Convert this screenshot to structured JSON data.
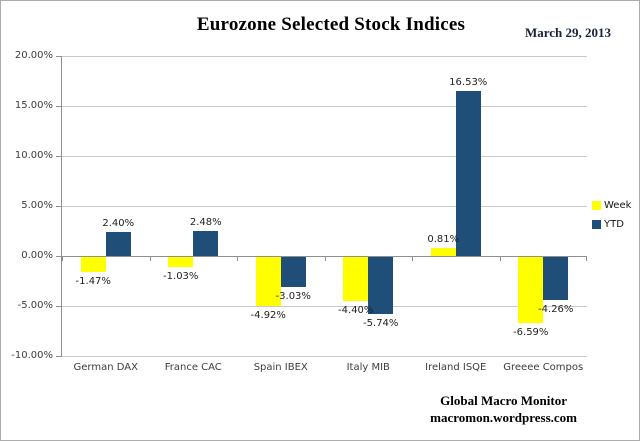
{
  "header": {
    "title": "Eurozone Selected Stock Indices",
    "date": "March 29, 2013"
  },
  "footer": {
    "line1": "Global Macro Monitor",
    "line2": "macromon.wordpress.com"
  },
  "colors": {
    "week": "#FFFF00",
    "ytd": "#1F4E79",
    "gridline": "#c9c9c9",
    "axis": "#8f8f8f"
  },
  "chart_data": {
    "type": "bar",
    "title": "Eurozone Selected Stock Indices",
    "subtitle": "March 29, 2013",
    "categories": [
      "German DAX",
      "France CAC",
      "Spain IBEX",
      "Italy MIB",
      "Ireland ISQE",
      "Greeee Compos"
    ],
    "series": [
      {
        "name": "Week",
        "color": "#FFFF00",
        "values": [
          -1.47,
          -1.03,
          -4.92,
          -4.4,
          0.81,
          -6.59
        ],
        "labels": [
          "-1.47%",
          "-1.03%",
          "-4.92%",
          "-4.40%",
          "0.81%",
          "-6.59%"
        ]
      },
      {
        "name": "YTD",
        "color": "#1F4E79",
        "values": [
          2.4,
          2.48,
          -3.03,
          -5.74,
          16.53,
          -4.26
        ],
        "labels": [
          "2.40%",
          "2.48%",
          "-3.03%",
          "-5.74%",
          "16.53%",
          "-4.26%"
        ]
      }
    ],
    "y_axis": {
      "min": -10,
      "max": 20,
      "step": 5,
      "tick_labels": [
        "20.00%",
        "15.00%",
        "10.00%",
        "5.00%",
        "0.00%",
        "-5.00%",
        "-10.00%"
      ]
    },
    "xlabel": "",
    "ylabel": "",
    "grid": true,
    "legend_position": "right"
  }
}
